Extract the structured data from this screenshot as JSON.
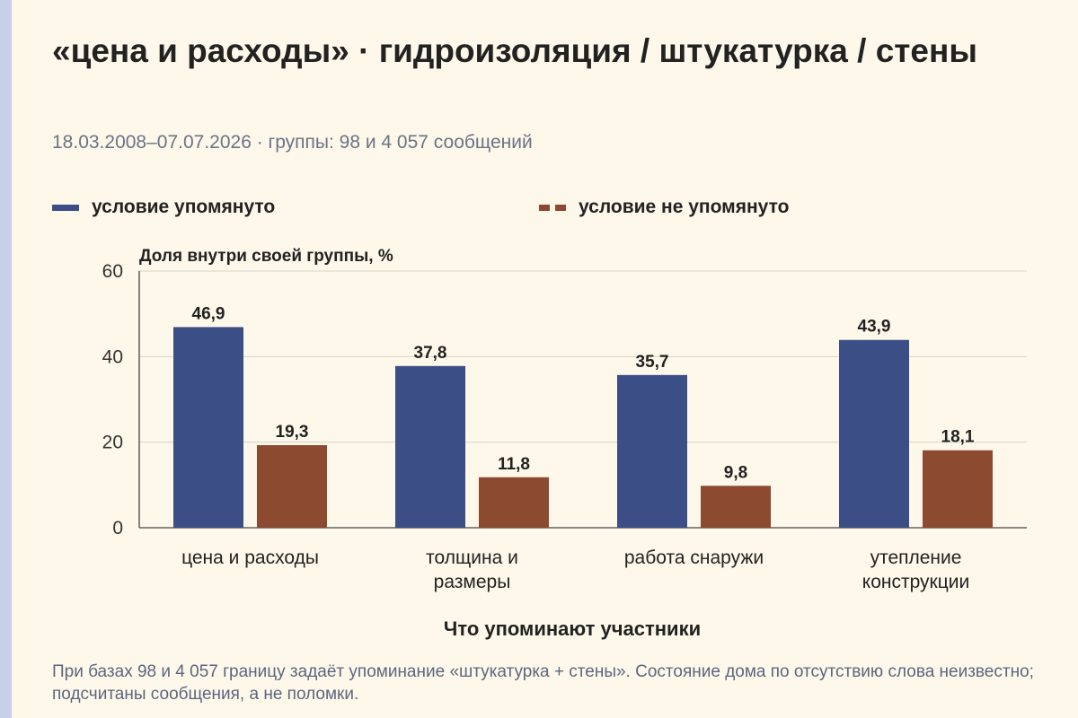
{
  "title": "«цена и расходы» · гидроизоляция / штукатурка / стены",
  "subtitle": "18.03.2008–07.07.2026 · группы: 98 и 4 057 сообщений",
  "legend": {
    "series_a": "условие упомянуто",
    "series_b": "условие не упомянуто"
  },
  "colors": {
    "series_a": "#3b4e85",
    "series_b": "#8c4a30",
    "background": "#fdf8e9",
    "grid": "#d8d4c8"
  },
  "footnote": "При базах 98 и 4 057 границу задаёт упоминание «штукатурка + стены». Состояние дома по отсутствию слова неизвестно; подсчитаны сообщения, а не поломки.",
  "chart_data": {
    "type": "bar",
    "ylabel": "Доля внутри своей группы, %",
    "xlabel": "Что упоминают участники",
    "ylim": [
      0,
      60
    ],
    "yticks": [
      0,
      20,
      40,
      60
    ],
    "grid": true,
    "legend_position": "top",
    "categories": [
      [
        "цена и расходы"
      ],
      [
        "толщина и",
        "размеры"
      ],
      [
        "работа снаружи"
      ],
      [
        "утепление",
        "конструкции"
      ]
    ],
    "series": [
      {
        "name": "условие упомянуто",
        "values": [
          46.9,
          37.8,
          35.7,
          43.9
        ],
        "labels": [
          "46,9",
          "37,8",
          "35,7",
          "43,9"
        ]
      },
      {
        "name": "условие не упомянуто",
        "values": [
          19.3,
          11.8,
          9.8,
          18.1
        ],
        "labels": [
          "19,3",
          "11,8",
          "9,8",
          "18,1"
        ]
      }
    ]
  }
}
